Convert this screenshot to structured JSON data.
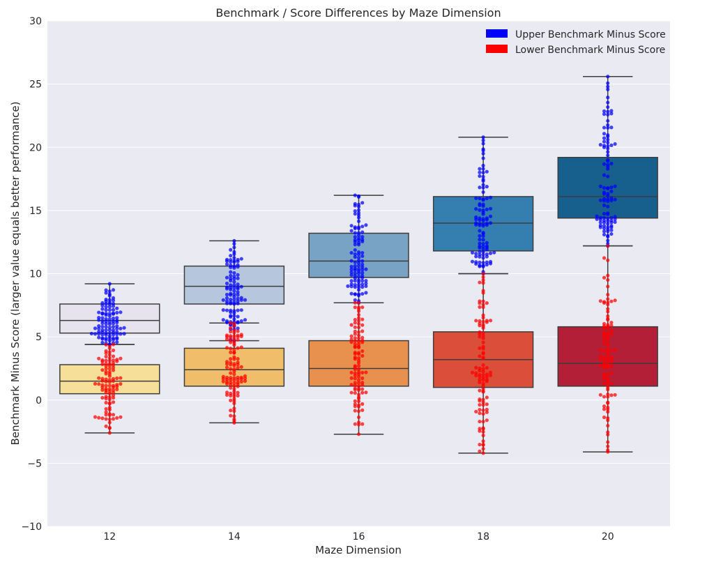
{
  "chart_data": {
    "type": "box",
    "title": "Benchmark / Score Differences by Maze Dimension",
    "xlabel": "Maze Dimension",
    "ylabel": "Benchmark Minus Score (larger value equals better performance)",
    "categories": [
      "12",
      "14",
      "16",
      "18",
      "20"
    ],
    "ylim": [
      -10,
      30
    ],
    "yticks": [
      30,
      25,
      20,
      15,
      10,
      5,
      0,
      -5,
      -10
    ],
    "ytick_labels": [
      "30",
      "25",
      "20",
      "15",
      "10",
      "5",
      "0",
      "−5",
      "−10"
    ],
    "grid": true,
    "legend_position": "top-right",
    "series": [
      {
        "name": "Upper Benchmark Minus Score",
        "point_color": "#0000ff",
        "box_colors": [
          "#e6e3ee",
          "#b6c6dc",
          "#78a3c5",
          "#347fb0",
          "#175f8c"
        ],
        "boxes": [
          {
            "whisker_low": 4.4,
            "q1": 5.3,
            "median": 6.3,
            "q3": 7.6,
            "whisker_high": 9.2
          },
          {
            "whisker_low": 4.7,
            "q1": 7.6,
            "median": 9.0,
            "q3": 10.6,
            "whisker_high": 12.6
          },
          {
            "whisker_low": 7.7,
            "q1": 9.7,
            "median": 11.0,
            "q3": 13.2,
            "whisker_high": 16.2
          },
          {
            "whisker_low": 10.0,
            "q1": 11.8,
            "median": 14.0,
            "q3": 16.1,
            "whisker_high": 20.8
          },
          {
            "whisker_low": 12.2,
            "q1": 14.4,
            "median": 16.1,
            "q3": 19.2,
            "whisker_high": 25.6
          }
        ]
      },
      {
        "name": "Lower Benchmark Minus Score",
        "point_color": "#ff0000",
        "box_colors": [
          "#f6df98",
          "#f0bd6b",
          "#e8914f",
          "#db4e39",
          "#b21f37"
        ],
        "boxes": [
          {
            "whisker_low": -2.6,
            "q1": 0.5,
            "median": 1.5,
            "q3": 2.8,
            "whisker_high": 4.4
          },
          {
            "whisker_low": -1.8,
            "q1": 1.1,
            "median": 2.4,
            "q3": 4.1,
            "whisker_high": 6.1
          },
          {
            "whisker_low": -2.7,
            "q1": 1.1,
            "median": 2.5,
            "q3": 4.7,
            "whisker_high": 7.7
          },
          {
            "whisker_low": -4.2,
            "q1": 1.0,
            "median": 3.2,
            "q3": 5.4,
            "whisker_high": 10.0
          },
          {
            "whisker_low": -4.1,
            "q1": 1.1,
            "median": 2.9,
            "q3": 5.8,
            "whisker_high": 12.2
          }
        ]
      }
    ]
  }
}
